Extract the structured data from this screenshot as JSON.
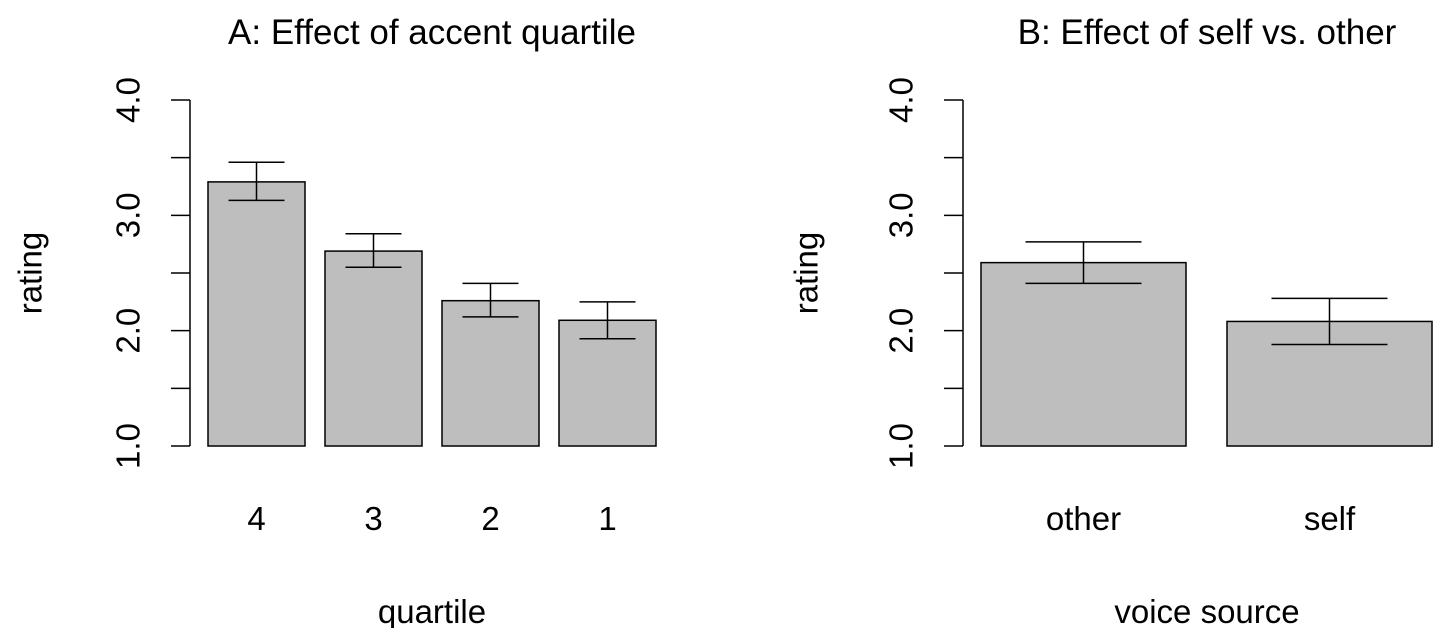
{
  "colors": {
    "bar_fill": "#bebebe",
    "stroke": "#000000",
    "background": "#ffffff"
  },
  "chart_data": [
    {
      "type": "bar",
      "title": "A: Effect of accent quartile",
      "xlabel": "quartile",
      "ylabel": "rating",
      "ylim": [
        1.0,
        4.0
      ],
      "y_ticks": [
        1.0,
        1.5,
        2.0,
        2.5,
        3.0,
        3.5,
        4.0
      ],
      "y_tick_labels": [
        "1.0",
        "",
        "2.0",
        "",
        "3.0",
        "",
        "4.0"
      ],
      "categories": [
        "4",
        "3",
        "2",
        "1"
      ],
      "values": [
        3.29,
        2.69,
        2.26,
        2.09
      ],
      "error_low": [
        3.13,
        2.55,
        2.12,
        1.93
      ],
      "error_high": [
        3.46,
        2.84,
        2.41,
        2.25
      ],
      "grid": false,
      "legend": "none"
    },
    {
      "type": "bar",
      "title": "B: Effect of self vs. other",
      "xlabel": "voice source",
      "ylabel": "rating",
      "ylim": [
        1.0,
        4.0
      ],
      "y_ticks": [
        1.0,
        1.5,
        2.0,
        2.5,
        3.0,
        3.5,
        4.0
      ],
      "y_tick_labels": [
        "1.0",
        "",
        "2.0",
        "",
        "3.0",
        "",
        "4.0"
      ],
      "categories": [
        "other",
        "self"
      ],
      "values": [
        2.59,
        2.08
      ],
      "error_low": [
        2.41,
        1.88
      ],
      "error_high": [
        2.77,
        2.28
      ],
      "grid": false,
      "legend": "none"
    }
  ]
}
